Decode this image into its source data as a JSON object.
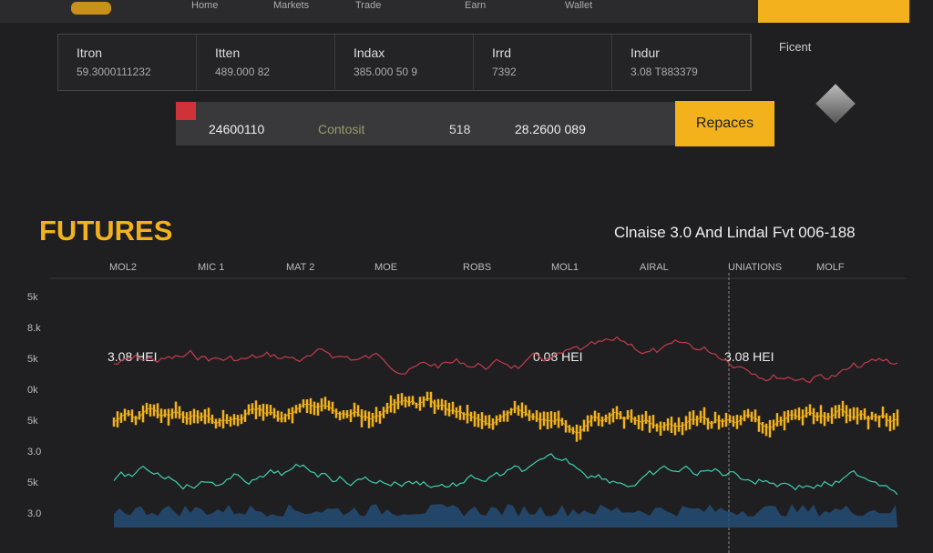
{
  "header": {
    "nav": [
      "Home",
      "Markets",
      "Trade",
      "Earn",
      "Wallet"
    ]
  },
  "stats": [
    {
      "name": "Itron",
      "value": "59.3000111232"
    },
    {
      "name": "Itten",
      "value": "489.000 82"
    },
    {
      "name": "Indax",
      "value": "385.000 50 9"
    },
    {
      "name": "Irrd",
      "value": "7392"
    },
    {
      "name": "Indur",
      "value": "3.08 T883379"
    }
  ],
  "side": {
    "label": "Ficent"
  },
  "order_bar": {
    "field1": "24600110",
    "field2": "Contosit",
    "field3": "518",
    "field4": "28.2600 089",
    "button": "Repaces"
  },
  "futures": {
    "title": "FUTURES",
    "subtitle": "Clnaise 3.0 And Lindal Fvt 006-188",
    "columns": [
      "MOL2",
      "MIC 1",
      "MAT 2",
      "MOE",
      "ROBS",
      "MOL1",
      "AIRAL",
      "UNIATIONS",
      "MOLF"
    ],
    "y_labels": [
      "5k",
      "8.k",
      "5k",
      "0k",
      "5k",
      "3.0",
      "5k",
      "3.0"
    ],
    "annotations": [
      "3.08 HEI",
      "0.08 HEI",
      "3.08 HEI"
    ]
  }
}
